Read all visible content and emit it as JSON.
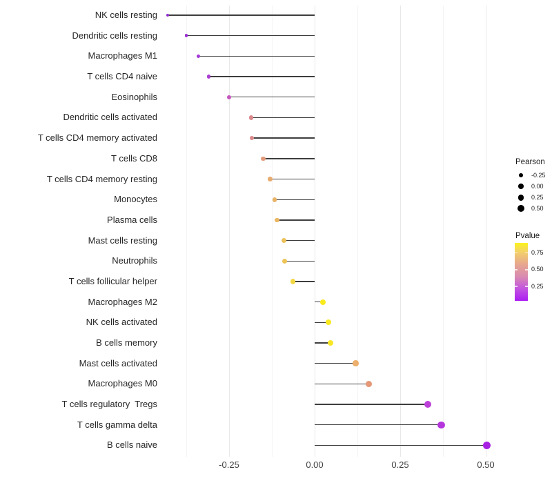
{
  "chart_data": {
    "type": "lollipop",
    "title": "",
    "xlabel": "",
    "ylabel": "",
    "orientation": "horizontal",
    "xlim": [
      -0.46,
      0.54
    ],
    "grid": "major+minor vertical, light gray on white",
    "x_ticks": [
      {
        "v": -0.25,
        "label": "-0.25"
      },
      {
        "v": 0.0,
        "label": "0.00"
      },
      {
        "v": 0.25,
        "label": "0.25"
      },
      {
        "v": 0.5,
        "label": "0.50"
      }
    ],
    "x_minor_ticks": [
      -0.375,
      -0.125,
      0.125,
      0.375
    ],
    "stem_color": "#3d3d3d",
    "points": [
      {
        "label": "NK cells resting",
        "pearson": -0.43,
        "color": "#8F2BD1"
      },
      {
        "label": "Dendritic cells resting",
        "pearson": -0.375,
        "color": "#9B30D6"
      },
      {
        "label": "Macrophages M1",
        "pearson": -0.34,
        "color": "#A337D5"
      },
      {
        "label": "T cells CD4 naive",
        "pearson": -0.31,
        "color": "#AA3DD2"
      },
      {
        "label": "Eosinophils",
        "pearson": -0.25,
        "color": "#C558BE"
      },
      {
        "label": "Dendritic cells activated",
        "pearson": -0.185,
        "color": "#DB898E"
      },
      {
        "label": "T cells CD4 memory activated",
        "pearson": -0.183,
        "color": "#DB8A8C"
      },
      {
        "label": "T cells CD8",
        "pearson": -0.15,
        "color": "#E29B7A"
      },
      {
        "label": "T cells CD4 memory resting",
        "pearson": -0.13,
        "color": "#E8AB6F"
      },
      {
        "label": "Monocytes",
        "pearson": -0.117,
        "color": "#EAB364"
      },
      {
        "label": "Plasma cells",
        "pearson": -0.11,
        "color": "#EBB662"
      },
      {
        "label": "Mast cells resting",
        "pearson": -0.089,
        "color": "#EDC25A"
      },
      {
        "label": "Neutrophils",
        "pearson": -0.087,
        "color": "#EEC457"
      },
      {
        "label": "T cells follicular helper",
        "pearson": -0.063,
        "color": "#F2D845"
      },
      {
        "label": "Macrophages M2",
        "pearson": 0.024,
        "color": "#F9EA1D"
      },
      {
        "label": "NK cells activated",
        "pearson": 0.04,
        "color": "#F9E81E"
      },
      {
        "label": "B cells memory",
        "pearson": 0.046,
        "color": "#F8E724"
      },
      {
        "label": "Mast cells activated",
        "pearson": 0.12,
        "color": "#ECAF6C"
      },
      {
        "label": "Macrophages M0",
        "pearson": 0.158,
        "color": "#E59878"
      },
      {
        "label": "T cells regulatory  Tregs",
        "pearson": 0.33,
        "color": "#BD40D8"
      },
      {
        "label": "T cells gamma delta",
        "pearson": 0.37,
        "color": "#B335DC"
      },
      {
        "label": "B cells naive",
        "pearson": 0.503,
        "color": "#A721E3"
      }
    ],
    "legend_size": {
      "title": "Pearson",
      "entries": [
        {
          "label": "-0.25",
          "size": 5.7
        },
        {
          "label": "0.00",
          "size": 7.7
        },
        {
          "label": "0.25",
          "size": 8.7
        },
        {
          "label": "0.50",
          "size": 10.0
        }
      ]
    },
    "legend_color": {
      "title": "Pvalue",
      "tick_labels": [
        "0.75",
        "0.50",
        "0.25"
      ],
      "gradient_stops": [
        {
          "pos": 0,
          "color": "#FBF31D"
        },
        {
          "pos": 16,
          "color": "#F3CF6B"
        },
        {
          "pos": 38,
          "color": "#E6A590"
        },
        {
          "pos": 58,
          "color": "#D98BB0"
        },
        {
          "pos": 78,
          "color": "#C457DE"
        },
        {
          "pos": 100,
          "color": "#AB1DF3"
        }
      ]
    }
  }
}
